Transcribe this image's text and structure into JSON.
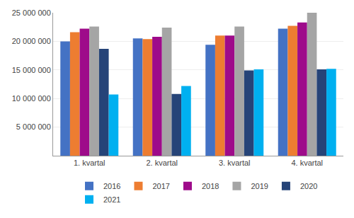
{
  "chart_data": {
    "type": "bar",
    "categories": [
      "1. kvartal",
      "2. kvartal",
      "3. kvartal",
      "4. kvartal"
    ],
    "series": [
      {
        "name": "2016",
        "color": "#4472C4",
        "values": [
          20000000,
          20500000,
          19400000,
          22200000
        ]
      },
      {
        "name": "2017",
        "color": "#ED7D31",
        "values": [
          21600000,
          20400000,
          21000000,
          22700000
        ]
      },
      {
        "name": "2018",
        "color": "#9E0B8A",
        "values": [
          22200000,
          20800000,
          21000000,
          23300000
        ]
      },
      {
        "name": "2019",
        "color": "#A5A5A5",
        "values": [
          22600000,
          22400000,
          22600000,
          25000000
        ]
      },
      {
        "name": "2020",
        "color": "#264478",
        "values": [
          18700000,
          10800000,
          14900000,
          15100000
        ]
      },
      {
        "name": "2021",
        "color": "#00B0F0",
        "values": [
          10700000,
          12200000,
          15100000,
          15200000
        ]
      }
    ],
    "ylim": [
      0,
      25000000
    ],
    "yticks": [
      {
        "value": 5000000,
        "label": "5 000 000"
      },
      {
        "value": 10000000,
        "label": "10 000 000"
      },
      {
        "value": 15000000,
        "label": "15 000 000"
      },
      {
        "value": 20000000,
        "label": "20 000 000"
      },
      {
        "value": 25000000,
        "label": "25 000 000"
      }
    ],
    "grid": true,
    "legend": "bottom"
  }
}
